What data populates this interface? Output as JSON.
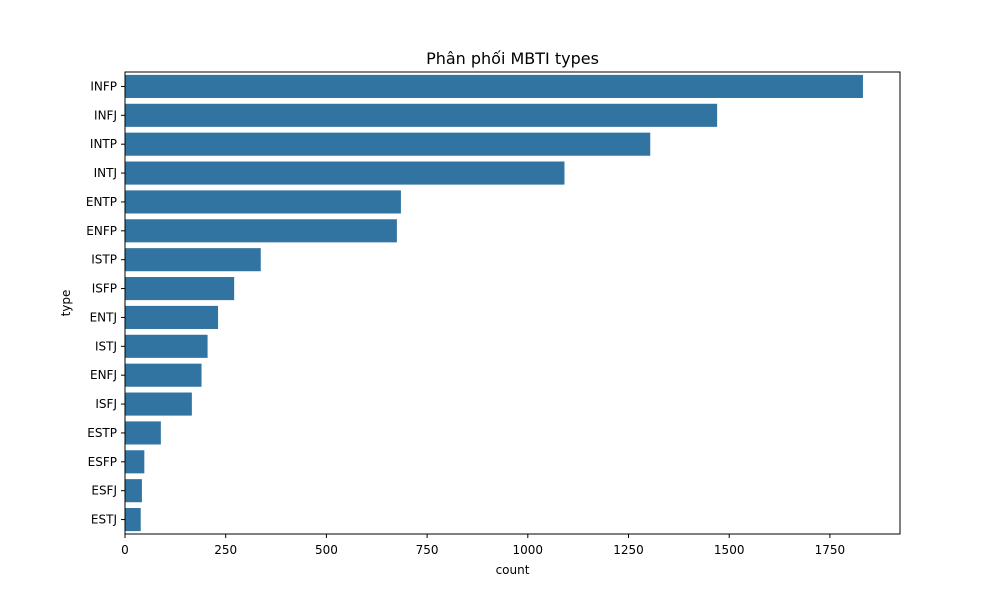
{
  "chart_data": {
    "type": "bar",
    "orientation": "horizontal",
    "title": "Phân phối MBTI types",
    "xlabel": "count",
    "ylabel": "type",
    "categories": [
      "INFP",
      "INFJ",
      "INTP",
      "INTJ",
      "ENTP",
      "ENFP",
      "ISTP",
      "ISFP",
      "ENTJ",
      "ISTJ",
      "ENFJ",
      "ISFJ",
      "ESTP",
      "ESFP",
      "ESFJ",
      "ESTJ"
    ],
    "values": [
      1832,
      1470,
      1304,
      1091,
      685,
      675,
      337,
      271,
      231,
      205,
      190,
      166,
      89,
      48,
      42,
      39
    ],
    "xlim": [
      0,
      1924
    ],
    "xticks": [
      0,
      250,
      500,
      750,
      1000,
      1250,
      1500,
      1750
    ],
    "grid": false,
    "bar_color": "#3274a1"
  }
}
